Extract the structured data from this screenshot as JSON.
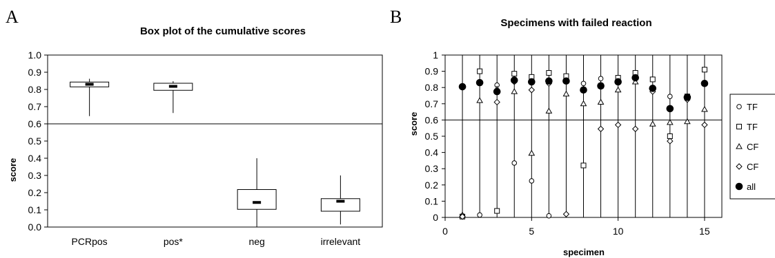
{
  "chart_data": [
    {
      "panel_label": "A",
      "type": "box",
      "title": "Box plot of the cumulative scores",
      "xlabel": "",
      "ylabel": "score",
      "ylim": [
        0,
        1
      ],
      "yticks": [
        "0.0",
        "0.1",
        "0.2",
        "0.3",
        "0.4",
        "0.5",
        "0.6",
        "0.7",
        "0.8",
        "0.9",
        "1.0"
      ],
      "reference_line_y": 0.6,
      "categories": [
        "PCRpos",
        "pos*",
        "neg",
        "irrelevant"
      ],
      "boxes": [
        {
          "min": 0.645,
          "q1": 0.815,
          "median": 0.83,
          "q3": 0.843,
          "max": 0.862
        },
        {
          "min": 0.663,
          "q1": 0.795,
          "median": 0.818,
          "q3": 0.836,
          "max": 0.848
        },
        {
          "min": 0.0,
          "q1": 0.103,
          "median": 0.143,
          "q3": 0.218,
          "max": 0.4
        },
        {
          "min": 0.015,
          "q1": 0.092,
          "median": 0.15,
          "q3": 0.165,
          "max": 0.3
        }
      ]
    },
    {
      "panel_label": "B",
      "type": "scatter",
      "title": "Specimens with failed reaction",
      "xlabel": "specimen",
      "ylabel": "score",
      "xlim": [
        0,
        16
      ],
      "ylim": [
        0,
        1
      ],
      "xticks": [
        0,
        5,
        10,
        15
      ],
      "yticks": [
        "0",
        "0.1",
        "0.2",
        "0.3",
        "0.4",
        "0.5",
        "0.6",
        "0.7",
        "0.8",
        "0.9",
        "1"
      ],
      "reference_line_y": 0.6,
      "vertical_lines_x": [
        1,
        2,
        3,
        4,
        5,
        6,
        7,
        8,
        9,
        10,
        11,
        12,
        13,
        14,
        15
      ],
      "legend": {
        "position": "right",
        "entries": [
          {
            "label": "TF",
            "marker": "circle-open"
          },
          {
            "label": "TF",
            "marker": "square-open"
          },
          {
            "label": "CF",
            "marker": "triangle-open"
          },
          {
            "label": "CF",
            "marker": "diamond-open"
          },
          {
            "label": "all",
            "marker": "circle-filled"
          }
        ]
      },
      "series": [
        {
          "marker": "circle-open",
          "x": [
            1,
            2,
            3,
            4,
            5,
            6,
            7,
            8,
            9,
            10,
            11,
            12,
            13,
            14,
            15
          ],
          "y": [
            0.01,
            0.015,
            0.815,
            0.335,
            0.225,
            0.01,
            0.84,
            0.825,
            0.855,
            0.855,
            0.87,
            0.8,
            0.745,
            0.74,
            0.83
          ]
        },
        {
          "marker": "square-open",
          "x": [
            1,
            2,
            3,
            4,
            5,
            6,
            7,
            8,
            9,
            10,
            11,
            12,
            13,
            14,
            15
          ],
          "y": [
            0.005,
            0.9,
            0.04,
            0.885,
            0.865,
            0.89,
            0.87,
            0.32,
            0.81,
            0.86,
            0.89,
            0.85,
            0.5,
            0.745,
            0.91
          ]
        },
        {
          "marker": "triangle-open",
          "x": [
            1,
            2,
            3,
            4,
            5,
            6,
            7,
            8,
            9,
            10,
            11,
            12,
            13,
            14,
            15
          ],
          "y": [
            0.015,
            0.72,
            0.79,
            0.775,
            0.395,
            0.655,
            0.76,
            0.7,
            0.71,
            0.785,
            0.835,
            0.575,
            0.585,
            0.59,
            0.665
          ]
        },
        {
          "marker": "diamond-open",
          "x": [
            1,
            2,
            3,
            4,
            5,
            6,
            7,
            8,
            9,
            10,
            11,
            12,
            13,
            14,
            15
          ],
          "y": [
            0.005,
            0.83,
            0.71,
            0.835,
            0.785,
            0.825,
            0.02,
            0.79,
            0.545,
            0.57,
            0.545,
            0.775,
            0.47,
            0.725,
            0.57
          ]
        },
        {
          "marker": "circle-filled",
          "x": [
            1,
            2,
            3,
            4,
            5,
            6,
            7,
            8,
            9,
            10,
            11,
            12,
            13,
            14,
            15
          ],
          "y": [
            0.805,
            0.83,
            0.775,
            0.845,
            0.835,
            0.84,
            0.84,
            0.785,
            0.81,
            0.835,
            0.86,
            0.795,
            0.67,
            0.74,
            0.825
          ]
        }
      ]
    }
  ]
}
